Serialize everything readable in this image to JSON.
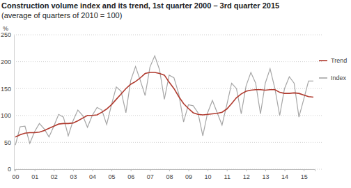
{
  "chart_data": {
    "type": "line",
    "title": "Construction volume index and its trend, 1st quarter 2000 – 3rd quarter 2015",
    "subtitle": "(average of quarters of 2010 = 100)",
    "y_label": "%",
    "categories": [
      "00",
      null,
      null,
      null,
      "01",
      null,
      null,
      null,
      "02",
      null,
      null,
      null,
      "03",
      null,
      null,
      null,
      "04",
      null,
      null,
      null,
      "05",
      null,
      null,
      null,
      "06",
      null,
      null,
      null,
      "07",
      null,
      null,
      null,
      "08",
      null,
      null,
      null,
      "09",
      null,
      null,
      null,
      "10",
      null,
      null,
      null,
      "11",
      null,
      null,
      null,
      "12",
      null,
      null,
      null,
      "13",
      null,
      null,
      null,
      "14",
      null,
      null,
      null,
      "15",
      null,
      null
    ],
    "series": [
      {
        "name": "Trend",
        "color": "#b03a2e",
        "values": [
          60,
          64,
          67,
          68,
          68,
          69,
          72,
          76,
          80,
          84,
          85,
          85,
          86,
          90,
          95,
          100,
          100,
          101,
          106,
          112,
          120,
          130,
          140,
          150,
          158,
          163,
          170,
          178,
          180,
          180,
          178,
          175,
          162,
          150,
          135,
          122,
          113,
          105,
          102,
          101,
          102,
          103,
          104,
          106,
          112,
          122,
          133,
          140,
          145,
          147,
          148,
          148,
          147,
          148,
          148,
          143,
          141,
          141,
          142,
          141,
          138,
          135,
          134
        ]
      },
      {
        "name": "Index",
        "color": "#a6a6a6",
        "values": [
          45,
          79,
          80,
          48,
          70,
          85,
          75,
          60,
          80,
          102,
          97,
          62,
          90,
          110,
          100,
          78,
          100,
          115,
          110,
          83,
          120,
          153,
          145,
          105,
          165,
          191,
          165,
          137,
          190,
          211,
          185,
          130,
          175,
          170,
          140,
          88,
          120,
          118,
          105,
          62,
          105,
          128,
          105,
          82,
          120,
          160,
          150,
          103,
          155,
          180,
          160,
          103,
          160,
          187,
          150,
          100,
          150,
          172,
          160,
          97,
          130,
          164,
          164
        ]
      }
    ],
    "ylim": [
      0,
      250
    ],
    "yticks": [
      0,
      50,
      100,
      150,
      200,
      250
    ],
    "grid": true,
    "legend": "right"
  }
}
